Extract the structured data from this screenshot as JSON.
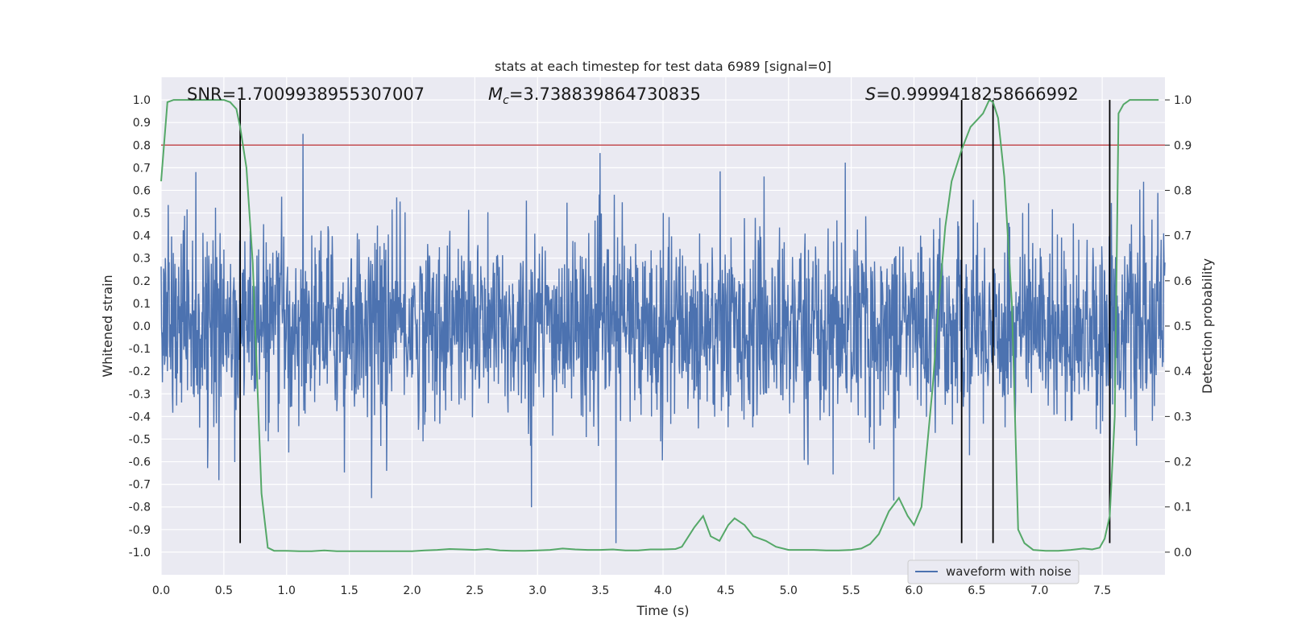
{
  "chart_data": {
    "type": "line",
    "title": "stats at each timestep for test data 6989 [signal=0]",
    "xlabel": "Time (s)",
    "ylabel": "Whitened strain",
    "ylabel_right": "Detection probability",
    "xlim": [
      0.0,
      8.0
    ],
    "ylim": [
      -1.1,
      1.1
    ],
    "ylim_right": [
      -0.05,
      1.05
    ],
    "xticks": [
      "0.0",
      "0.5",
      "1.0",
      "1.5",
      "2.0",
      "2.5",
      "3.0",
      "3.5",
      "4.0",
      "4.5",
      "5.0",
      "5.5",
      "6.0",
      "6.5",
      "7.0",
      "7.5"
    ],
    "yticks": [
      "-1.0",
      "-0.9",
      "-0.8",
      "-0.7",
      "-0.6",
      "-0.5",
      "-0.4",
      "-0.3",
      "-0.2",
      "-0.1",
      "0.0",
      "0.1",
      "0.2",
      "0.3",
      "0.4",
      "0.5",
      "0.6",
      "0.7",
      "0.8",
      "0.9",
      "1.0"
    ],
    "yticks_right": [
      "0.0",
      "0.1",
      "0.2",
      "0.3",
      "0.4",
      "0.5",
      "0.6",
      "0.7",
      "0.8",
      "0.9",
      "1.0"
    ],
    "grid": true,
    "legend": {
      "position": "lower-right",
      "entries": [
        "waveform with noise"
      ]
    },
    "annotations": {
      "snr": "SNR=1.7009938955307007",
      "mc_symbol": "M",
      "mc_sub": "c",
      "mc_value": "=3.738839864730835",
      "s_symbol": "S",
      "s_value": "=0.9999418258666992"
    },
    "threshold_right": 0.9,
    "vlines": [
      0.63,
      6.38,
      6.63,
      7.56
    ],
    "series": [
      {
        "name": "waveform with noise",
        "kind": "noise",
        "color": "#4c72b0",
        "envelope": {
          "x": [
            0.0,
            1.0,
            2.0,
            3.0,
            4.0,
            5.0,
            6.0,
            7.0,
            8.0
          ],
          "core": 0.25,
          "max_peak": 0.85,
          "min_trough": -0.96
        }
      },
      {
        "name": "",
        "kind": "probability",
        "color": "#55a868",
        "x": [
          0.0,
          0.05,
          0.1,
          0.2,
          0.3,
          0.4,
          0.5,
          0.55,
          0.6,
          0.63,
          0.68,
          0.73,
          0.8,
          0.85,
          0.9,
          1.0,
          1.1,
          1.2,
          1.3,
          1.4,
          1.5,
          1.6,
          1.7,
          1.8,
          1.9,
          2.0,
          2.1,
          2.2,
          2.3,
          2.4,
          2.5,
          2.6,
          2.7,
          2.8,
          2.9,
          3.0,
          3.1,
          3.2,
          3.3,
          3.4,
          3.5,
          3.6,
          3.7,
          3.8,
          3.9,
          4.0,
          4.1,
          4.15,
          4.25,
          4.32,
          4.38,
          4.45,
          4.52,
          4.57,
          4.65,
          4.72,
          4.82,
          4.9,
          5.0,
          5.1,
          5.2,
          5.3,
          5.4,
          5.5,
          5.58,
          5.65,
          5.72,
          5.8,
          5.88,
          5.95,
          6.0,
          6.06,
          6.1,
          6.15,
          6.2,
          6.25,
          6.3,
          6.38,
          6.45,
          6.5,
          6.55,
          6.6,
          6.63,
          6.67,
          6.72,
          6.78,
          6.83,
          6.88,
          6.95,
          7.05,
          7.15,
          7.25,
          7.35,
          7.42,
          7.48,
          7.52,
          7.56,
          7.6,
          7.63,
          7.67,
          7.72,
          7.8,
          7.9,
          7.95
        ],
        "y": [
          0.82,
          0.995,
          1.0,
          1.0,
          1.0,
          1.0,
          1.0,
          0.995,
          0.98,
          0.94,
          0.85,
          0.64,
          0.13,
          0.01,
          0.003,
          0.003,
          0.002,
          0.002,
          0.004,
          0.002,
          0.002,
          0.002,
          0.002,
          0.002,
          0.002,
          0.002,
          0.004,
          0.005,
          0.007,
          0.006,
          0.005,
          0.007,
          0.004,
          0.003,
          0.003,
          0.004,
          0.005,
          0.008,
          0.006,
          0.005,
          0.005,
          0.006,
          0.004,
          0.004,
          0.006,
          0.006,
          0.007,
          0.012,
          0.055,
          0.08,
          0.035,
          0.025,
          0.06,
          0.075,
          0.06,
          0.035,
          0.025,
          0.012,
          0.005,
          0.005,
          0.005,
          0.004,
          0.004,
          0.005,
          0.008,
          0.018,
          0.04,
          0.09,
          0.12,
          0.08,
          0.06,
          0.1,
          0.22,
          0.37,
          0.56,
          0.72,
          0.82,
          0.89,
          0.94,
          0.955,
          0.97,
          1.0,
          0.995,
          0.96,
          0.83,
          0.55,
          0.05,
          0.02,
          0.005,
          0.003,
          0.003,
          0.005,
          0.008,
          0.006,
          0.01,
          0.03,
          0.08,
          0.3,
          0.97,
          0.99,
          1.0,
          1.0,
          1.0,
          1.0
        ]
      },
      {
        "name": "",
        "kind": "threshold",
        "color": "#c44e52"
      }
    ]
  }
}
